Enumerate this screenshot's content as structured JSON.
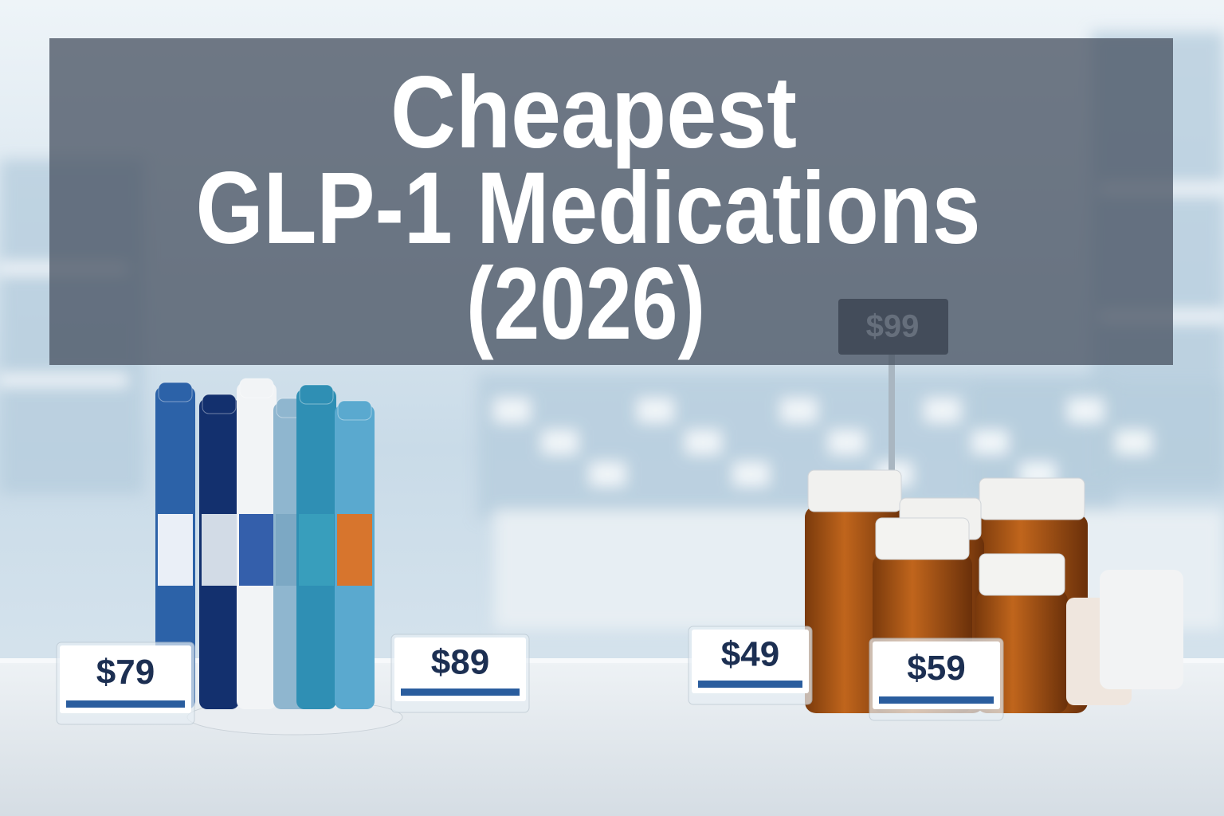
{
  "header": {
    "title": {
      "lines": [
        "Cheapest",
        "GLP-1 Medications",
        "(2026)"
      ]
    }
  },
  "background_sign": {
    "label": "$99"
  },
  "price_tags": [
    {
      "label": "$79"
    },
    {
      "label": "$89"
    },
    {
      "label": "$49"
    },
    {
      "label": "$59"
    }
  ]
}
